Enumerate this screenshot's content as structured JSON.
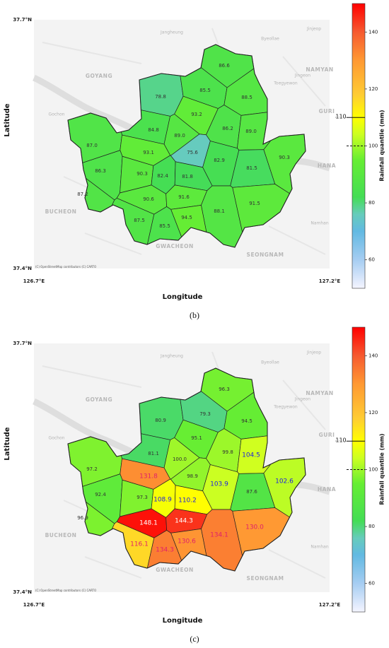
{
  "x_label": "Longitude",
  "y_label": "Latitude",
  "lat_ticks": [
    {
      "value": 37.7,
      "label": "37.7°N"
    },
    {
      "value": 37.4,
      "label": "37.4°N"
    }
  ],
  "lon_ticks": [
    {
      "value": 126.7,
      "label": "126.7°E"
    },
    {
      "value": 127.2,
      "label": "127.2°E"
    }
  ],
  "basemap_labels": [
    "GOYANG",
    "Gochon",
    "BUCHEON",
    "Jangheung",
    "Byeollae",
    "Jinjeop",
    "Toegyewon",
    "Jingeon",
    "NAMYAN",
    "GURI",
    "HANA",
    "Namhan",
    "GWACHEON",
    "SEONGNAM",
    "(C) OpenStreetMap contributors (C) CARTO"
  ],
  "colorbar": {
    "label": "Rainfall quantile (mm)",
    "lim": [
      50,
      150
    ],
    "ticks": [
      60,
      80,
      100,
      120,
      140
    ],
    "reference_lines": [
      {
        "value": 110,
        "label": "110",
        "style": "solid"
      },
      {
        "value": 100,
        "style": "dashed"
      }
    ],
    "colormap": [
      [
        50,
        "#f4f4ff"
      ],
      [
        60,
        "#a6cdf2"
      ],
      [
        70,
        "#62b9e2"
      ],
      [
        76,
        "#66ccbb"
      ],
      [
        82,
        "#44dd55"
      ],
      [
        95,
        "#66ee33"
      ],
      [
        104,
        "#ccff22"
      ],
      [
        110,
        "#ffff00"
      ],
      [
        118,
        "#ffcc33"
      ],
      [
        130,
        "#ff9933"
      ],
      [
        140,
        "#f65a30"
      ],
      [
        150,
        "#ff0000"
      ]
    ]
  },
  "panels": [
    {
      "caption": "(b)",
      "values": [
        86.6,
        78.8,
        85.5,
        88.5,
        93.2,
        84.8,
        89.0,
        86.2,
        89.0,
        87.0,
        93.1,
        75.6,
        82.9,
        81.5,
        90.3,
        86.3,
        90.3,
        82.4,
        81.8,
        87.2,
        90.6,
        91.6,
        88.1,
        91.5,
        87.5,
        85.5,
        94.5
      ],
      "value_labels": [
        "86.6",
        "78.8",
        "85.5",
        "88.5",
        "93.2",
        "84.8",
        "89.0",
        "86.2",
        "89.0",
        "87.0",
        "93.1",
        "75.6",
        "82.9",
        "81.5",
        "90.3",
        "86.3",
        "90.3",
        "82.4",
        "81.8",
        "87.2",
        "90.6",
        "91.6",
        "88.1",
        "91.5",
        "87.5",
        "85.5",
        "94.5"
      ],
      "label_color": "#333333"
    },
    {
      "caption": "(c)",
      "values": [
        96.3,
        80.9,
        79.3,
        94.5,
        95.1,
        81.1,
        100.0,
        99.8,
        104.5,
        97.2,
        131.8,
        98.9,
        103.9,
        87.6,
        102.6,
        92.4,
        97.3,
        108.9,
        110.2,
        96.9,
        148.1,
        144.3,
        134.1,
        130.0,
        116.1,
        134.3,
        130.6
      ],
      "value_labels": [
        "96.3",
        "80.9",
        "79.3",
        "94.5",
        "95.1",
        "81.1",
        "100.0",
        "99.8",
        "104.5",
        "97.2",
        "131.8",
        "98.9",
        "103.9",
        "87.6",
        "102.6",
        "92.4",
        "97.3",
        "108.9",
        "110.2",
        "96.9",
        "148.1",
        "144.3",
        "134.1",
        "130.0",
        "116.1",
        "134.3",
        "130.6"
      ],
      "label_colors": [
        "#333333",
        "#333333",
        "#333333",
        "#333333",
        "#333333",
        "#333333",
        "#333333",
        "#333333",
        "#2222dd",
        "#333333",
        "#e0206a",
        "#333333",
        "#2222dd",
        "#333333",
        "#2222dd",
        "#333333",
        "#333333",
        "#2222dd",
        "#2222dd",
        "#333333",
        "#ffffff",
        "#ffffff",
        "#e0206a",
        "#e0206a",
        "#e0206a",
        "#e0206a",
        "#e0206a"
      ]
    }
  ]
}
